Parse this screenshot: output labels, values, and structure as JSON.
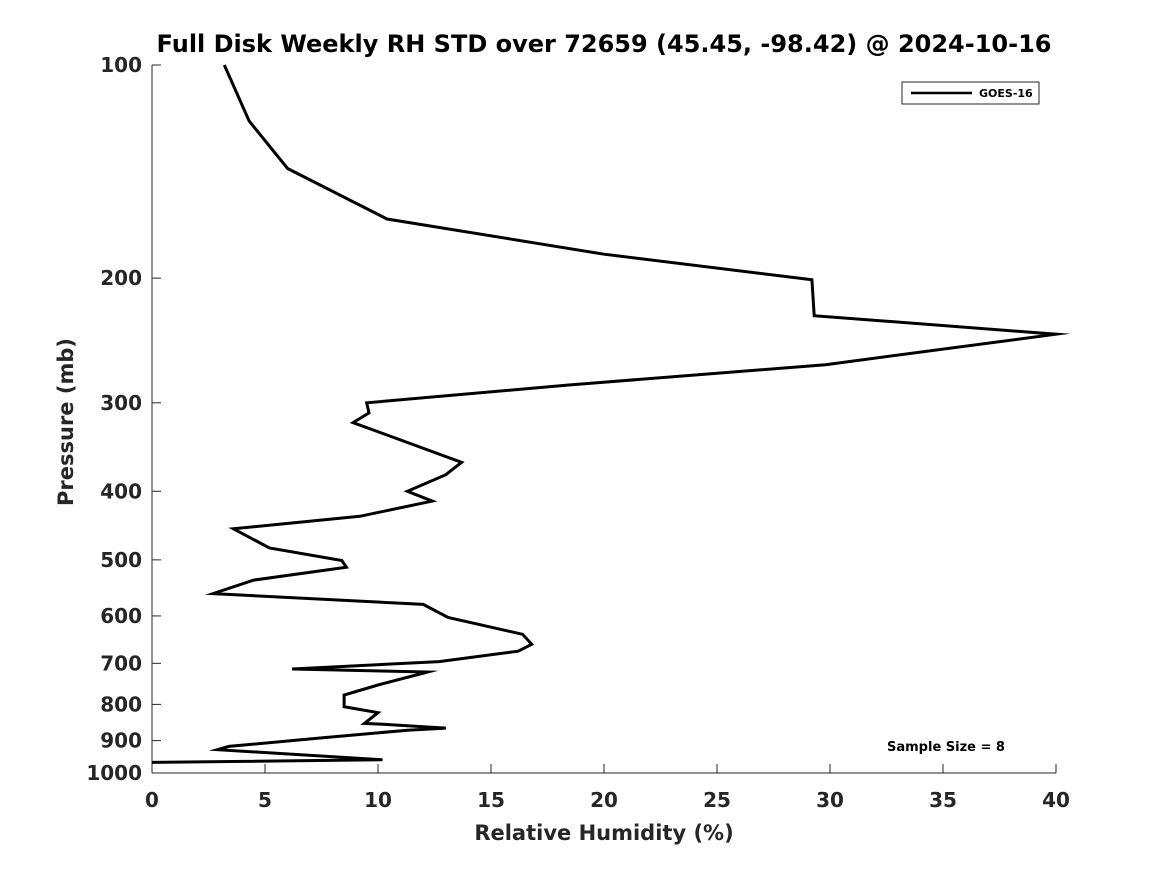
{
  "chart_data": {
    "type": "line",
    "title": "Full Disk Weekly RH STD over 72659 (45.45, -98.42) @ 2024-10-16",
    "xlabel": "Relative Humidity (%)",
    "ylabel": "Pressure (mb)",
    "xlim": [
      0,
      40
    ],
    "ylim": [
      100,
      1000
    ],
    "yscale": "log",
    "yreversed": true,
    "xticks": [
      0,
      5,
      10,
      15,
      20,
      25,
      30,
      35,
      40
    ],
    "xtick_labels": [
      "0",
      "5",
      "10",
      "15",
      "20",
      "25",
      "30",
      "35",
      "40"
    ],
    "yticks": [
      100,
      200,
      300,
      400,
      500,
      600,
      700,
      800,
      900,
      1000
    ],
    "ytick_labels": [
      "100",
      "200",
      "300",
      "400",
      "500",
      "600",
      "700",
      "800",
      "900",
      "1000"
    ],
    "legend_position": "top-right",
    "series": [
      {
        "name": "GOES-16",
        "color": "#000000",
        "x": [
          3.2,
          4.3,
          6.0,
          10.4,
          20.0,
          29.2,
          29.3,
          40.0,
          29.8,
          18.5,
          9.5,
          9.6,
          8.9,
          13.7,
          13.0,
          11.3,
          12.4,
          9.2,
          3.6,
          5.2,
          8.4,
          8.6,
          4.5,
          2.7,
          12.0,
          13.1,
          16.4,
          16.8,
          16.2,
          12.7,
          6.2,
          12.2,
          10.0,
          8.5,
          8.5,
          10.0,
          9.4,
          10.1,
          13.0,
          11.3,
          7.5,
          3.4,
          2.9,
          10.2,
          0.0
        ],
        "y": [
          100,
          120,
          140,
          165,
          185,
          201,
          226,
          240,
          265,
          283,
          300,
          310,
          320,
          364,
          379,
          400,
          413,
          434,
          452,
          481,
          501,
          512,
          534,
          558,
          578,
          603,
          637,
          658,
          673,
          696,
          713,
          720,
          751,
          776,
          806,
          822,
          851,
          853,
          864,
          870,
          892,
          917,
          927,
          958,
          966
        ]
      }
    ],
    "annotation": "Sample Size = 8"
  }
}
